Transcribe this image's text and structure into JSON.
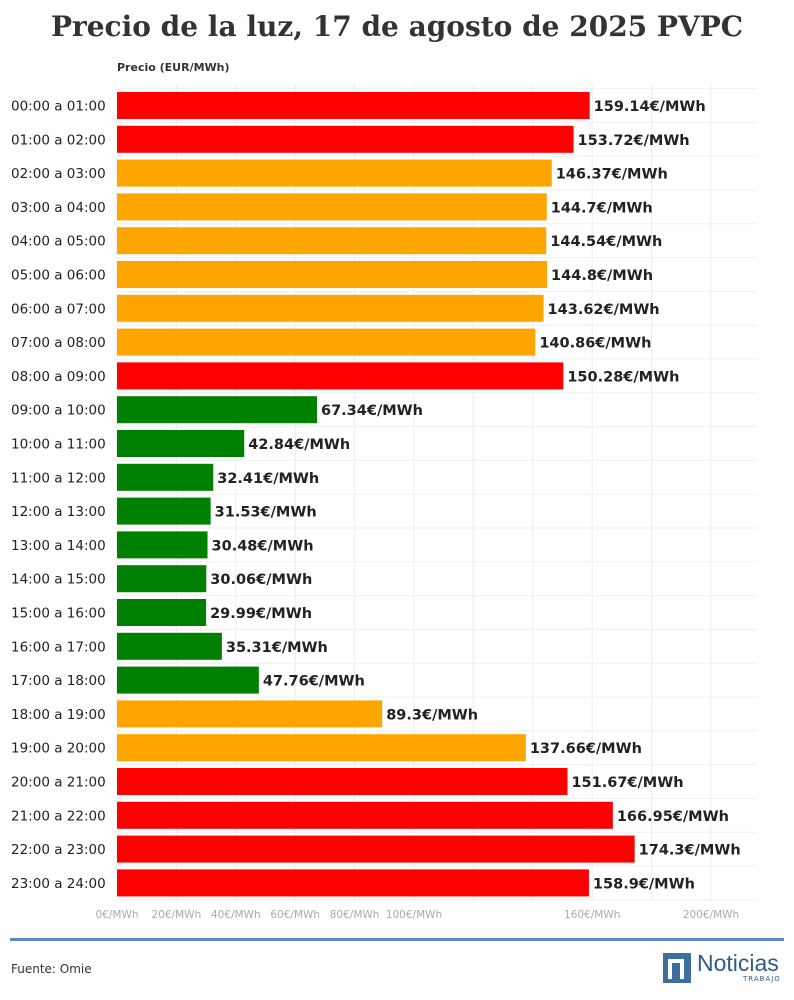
{
  "header": {
    "title": "Precio de la luz, 17 de agosto de 2025 PVPC",
    "subtitle": "Precio (EUR/MWh)"
  },
  "footer": {
    "source": "Fuente: Omie",
    "logo_text": "Noticias",
    "logo_sub": "TRABAJO"
  },
  "colors": {
    "high": "#ff0000",
    "mid": "#ffa500",
    "low": "#008000"
  },
  "chart_data": {
    "type": "bar",
    "orientation": "horizontal",
    "title": "Precio de la luz, 17 de agosto de 2025 PVPC",
    "xlabel": "Precio (EUR/MWh)",
    "xlim": [
      0,
      200
    ],
    "grid": true,
    "tick_labels": [
      {
        "value": 0,
        "label": "0€/MWh"
      },
      {
        "value": 20,
        "label": "20€/MWh"
      },
      {
        "value": 40,
        "label": "40€/MWh"
      },
      {
        "value": 60,
        "label": "60€/MWh"
      },
      {
        "value": 80,
        "label": "80€/MWh"
      },
      {
        "value": 100,
        "label": "100€/MWh"
      },
      {
        "value": 160,
        "label": "160€/MWh"
      },
      {
        "value": 200,
        "label": "200€/MWh"
      }
    ],
    "gridlines": [
      0,
      20,
      40,
      60,
      80,
      100,
      120,
      140,
      160,
      180,
      200
    ],
    "categories": [
      "00:00 a 01:00",
      "01:00 a 02:00",
      "02:00 a 03:00",
      "03:00 a 04:00",
      "04:00 a 05:00",
      "05:00 a 06:00",
      "06:00 a 07:00",
      "07:00 a 08:00",
      "08:00 a 09:00",
      "09:00 a 10:00",
      "10:00 a 11:00",
      "11:00 a 12:00",
      "12:00 a 13:00",
      "13:00 a 14:00",
      "14:00 a 15:00",
      "15:00 a 16:00",
      "16:00 a 17:00",
      "17:00 a 18:00",
      "18:00 a 19:00",
      "19:00 a 20:00",
      "20:00 a 21:00",
      "21:00 a 22:00",
      "22:00 a 23:00",
      "23:00 a 24:00"
    ],
    "values": [
      159.14,
      153.72,
      146.37,
      144.7,
      144.54,
      144.8,
      143.62,
      140.86,
      150.28,
      67.34,
      42.84,
      32.41,
      31.53,
      30.48,
      30.06,
      29.99,
      35.31,
      47.76,
      89.3,
      137.66,
      151.67,
      166.95,
      174.3,
      158.9
    ],
    "value_labels": [
      "159.14€/MWh",
      "153.72€/MWh",
      "146.37€/MWh",
      "144.7€/MWh",
      "144.54€/MWh",
      "144.8€/MWh",
      "143.62€/MWh",
      "140.86€/MWh",
      "150.28€/MWh",
      "67.34€/MWh",
      "42.84€/MWh",
      "32.41€/MWh",
      "31.53€/MWh",
      "30.48€/MWh",
      "30.06€/MWh",
      "29.99€/MWh",
      "35.31€/MWh",
      "47.76€/MWh",
      "89.3€/MWh",
      "137.66€/MWh",
      "151.67€/MWh",
      "166.95€/MWh",
      "174.3€/MWh",
      "158.9€/MWh"
    ],
    "bar_colors": [
      "high",
      "high",
      "mid",
      "mid",
      "mid",
      "mid",
      "mid",
      "mid",
      "high",
      "low",
      "low",
      "low",
      "low",
      "low",
      "low",
      "low",
      "low",
      "low",
      "mid",
      "mid",
      "high",
      "high",
      "high",
      "high"
    ]
  }
}
